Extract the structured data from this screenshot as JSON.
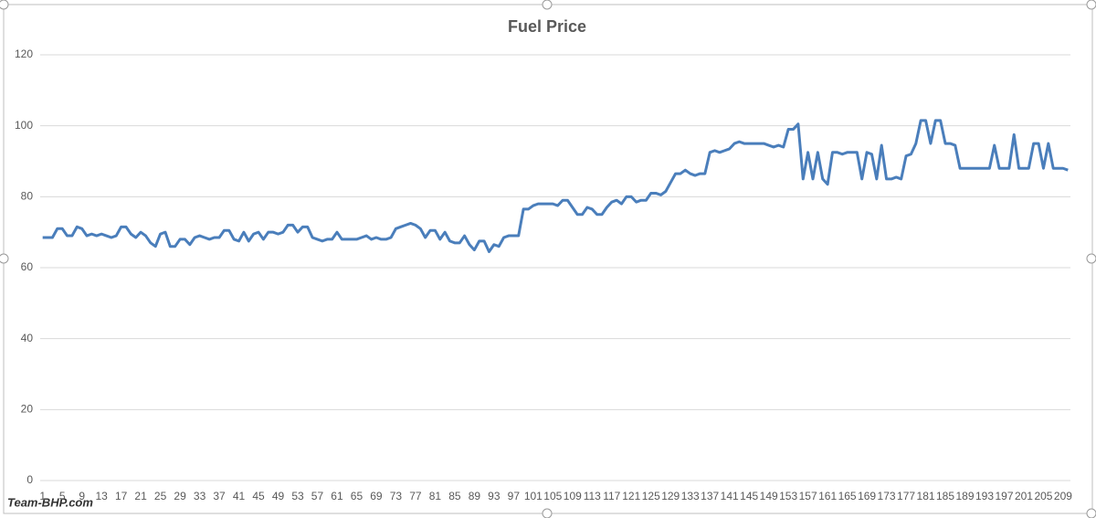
{
  "chart_data": {
    "type": "line",
    "title": "Fuel Price",
    "watermark": "Team-BHP.com",
    "color": "#4a7ebb",
    "ylim": [
      0,
      120
    ],
    "yticks": [
      0,
      20,
      40,
      60,
      80,
      100,
      120
    ],
    "grid": true,
    "categories": [
      1,
      null,
      null,
      null,
      5,
      null,
      null,
      null,
      9,
      null,
      null,
      null,
      13,
      null,
      null,
      null,
      17,
      null,
      null,
      null,
      21,
      null,
      null,
      null,
      25,
      null,
      null,
      null,
      29,
      null,
      null,
      null,
      33,
      null,
      null,
      null,
      37,
      null,
      null,
      null,
      41,
      null,
      null,
      null,
      45,
      null,
      null,
      null,
      49,
      null,
      null,
      null,
      53,
      null,
      null,
      null,
      57,
      null,
      null,
      null,
      61,
      null,
      null,
      null,
      65,
      null,
      null,
      null,
      69,
      null,
      null,
      null,
      73,
      null,
      null,
      null,
      77,
      null,
      null,
      null,
      81,
      null,
      null,
      null,
      85,
      null,
      null,
      null,
      89,
      null,
      null,
      null,
      93,
      null,
      null,
      null,
      97,
      null,
      null,
      null,
      101,
      null,
      null,
      null,
      105,
      null,
      null,
      null,
      109,
      null,
      null,
      null,
      113,
      null,
      null,
      null,
      117,
      null,
      null,
      null,
      121,
      null,
      null,
      null,
      125,
      null,
      null,
      null,
      129,
      null,
      null,
      null,
      133,
      null,
      null,
      null,
      137,
      null,
      null,
      null,
      141,
      null,
      null,
      null,
      145,
      null,
      null,
      null,
      149,
      null,
      null,
      null,
      153,
      null,
      null,
      null,
      157,
      null,
      null,
      null,
      161,
      null,
      null,
      null,
      165,
      null,
      null,
      null,
      169,
      null,
      null,
      null,
      173,
      null,
      null,
      null,
      177,
      null,
      null,
      null,
      181,
      null,
      null,
      null,
      185,
      null,
      null,
      null,
      189,
      null,
      null,
      null,
      193,
      null,
      null,
      null,
      197,
      null,
      null,
      null,
      201,
      null,
      null,
      null,
      205,
      null,
      null,
      null,
      209,
      null
    ],
    "values": [
      68.5,
      68.5,
      68.5,
      71,
      71,
      69,
      69,
      71.5,
      71,
      69,
      69.5,
      69,
      69.5,
      69,
      68.5,
      69,
      71.5,
      71.5,
      69.5,
      68.5,
      70,
      69,
      67,
      66,
      69.5,
      70,
      66,
      66,
      68,
      68,
      66.5,
      68.5,
      69,
      68.5,
      68,
      68.5,
      68.5,
      70.5,
      70.5,
      68,
      67.5,
      70,
      67.5,
      69.5,
      70,
      68,
      70,
      70,
      69.5,
      70,
      72,
      72,
      70,
      71.5,
      71.5,
      68.5,
      68,
      67.5,
      68,
      68,
      70,
      68,
      68,
      68,
      68,
      68.5,
      69,
      68,
      68.5,
      68,
      68,
      68.5,
      71,
      71.5,
      72,
      72.5,
      72,
      71,
      68.5,
      70.5,
      70.5,
      68,
      70,
      67.5,
      67,
      67,
      69,
      66.5,
      65,
      67.5,
      67.5,
      64.5,
      66.5,
      66,
      68.5,
      69,
      69,
      69,
      76.5,
      76.5,
      77.5,
      78,
      78,
      78,
      78,
      77.5,
      79,
      79,
      77,
      75,
      75,
      77,
      76.5,
      75,
      75,
      77,
      78.5,
      79,
      78,
      80,
      80,
      78.5,
      79,
      79,
      81,
      81,
      80.5,
      81.5,
      84,
      86.5,
      86.5,
      87.5,
      86.5,
      86,
      86.5,
      86.5,
      92.5,
      93,
      92.5,
      93,
      93.5,
      95,
      95.5,
      95,
      95,
      95,
      95,
      95,
      94.5,
      94,
      94.5,
      94,
      99,
      99,
      100.5,
      85,
      92.5,
      85,
      92.5,
      85,
      83.5,
      92.5,
      92.5,
      92,
      92.5,
      92.5,
      92.5,
      85,
      92.5,
      92,
      85,
      94.5,
      85,
      85,
      85.5,
      85,
      91.5,
      92,
      95,
      101.5,
      101.5,
      95,
      101.5,
      101.5,
      95,
      95,
      94.5,
      88,
      88,
      88,
      88,
      88,
      88,
      88,
      94.5,
      88,
      88,
      88,
      97.5,
      88,
      88,
      88,
      95,
      95,
      88,
      95,
      88,
      88,
      88,
      87.5
    ]
  }
}
